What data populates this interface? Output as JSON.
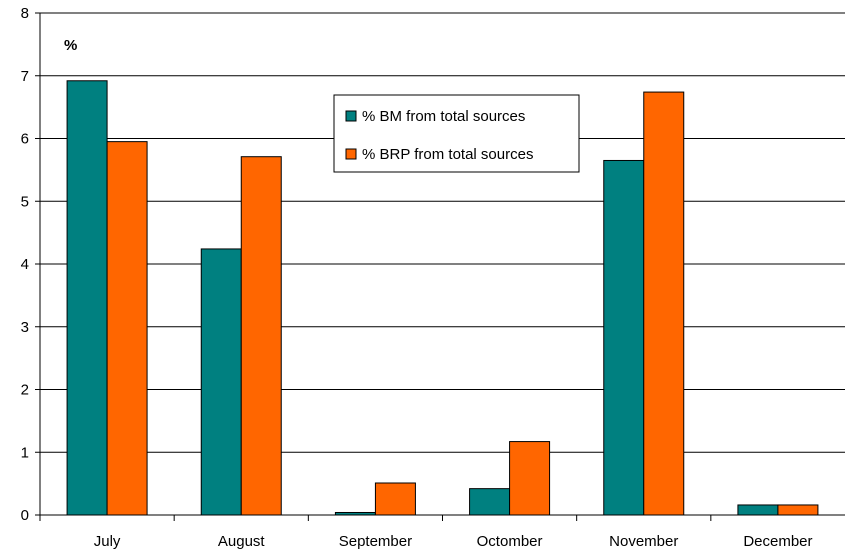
{
  "chart_data": {
    "type": "bar",
    "title": "",
    "xlabel": "",
    "ylabel": "",
    "unit_label": "%",
    "categories": [
      "July",
      "August",
      "September",
      "Octomber",
      "November",
      "December"
    ],
    "series": [
      {
        "name": "% BM from total sources",
        "color": "#008080",
        "values": [
          6.92,
          4.24,
          0.04,
          0.42,
          5.65,
          0.16
        ]
      },
      {
        "name": "% BRP from total sources",
        "color": "#ff6600",
        "values": [
          5.95,
          5.71,
          0.51,
          1.17,
          6.74,
          0.16
        ]
      }
    ],
    "ylim": [
      0,
      8
    ],
    "yticks": [
      0,
      1,
      2,
      3,
      4,
      5,
      6,
      7,
      8
    ],
    "grid": true,
    "legend_position": "top-center"
  }
}
